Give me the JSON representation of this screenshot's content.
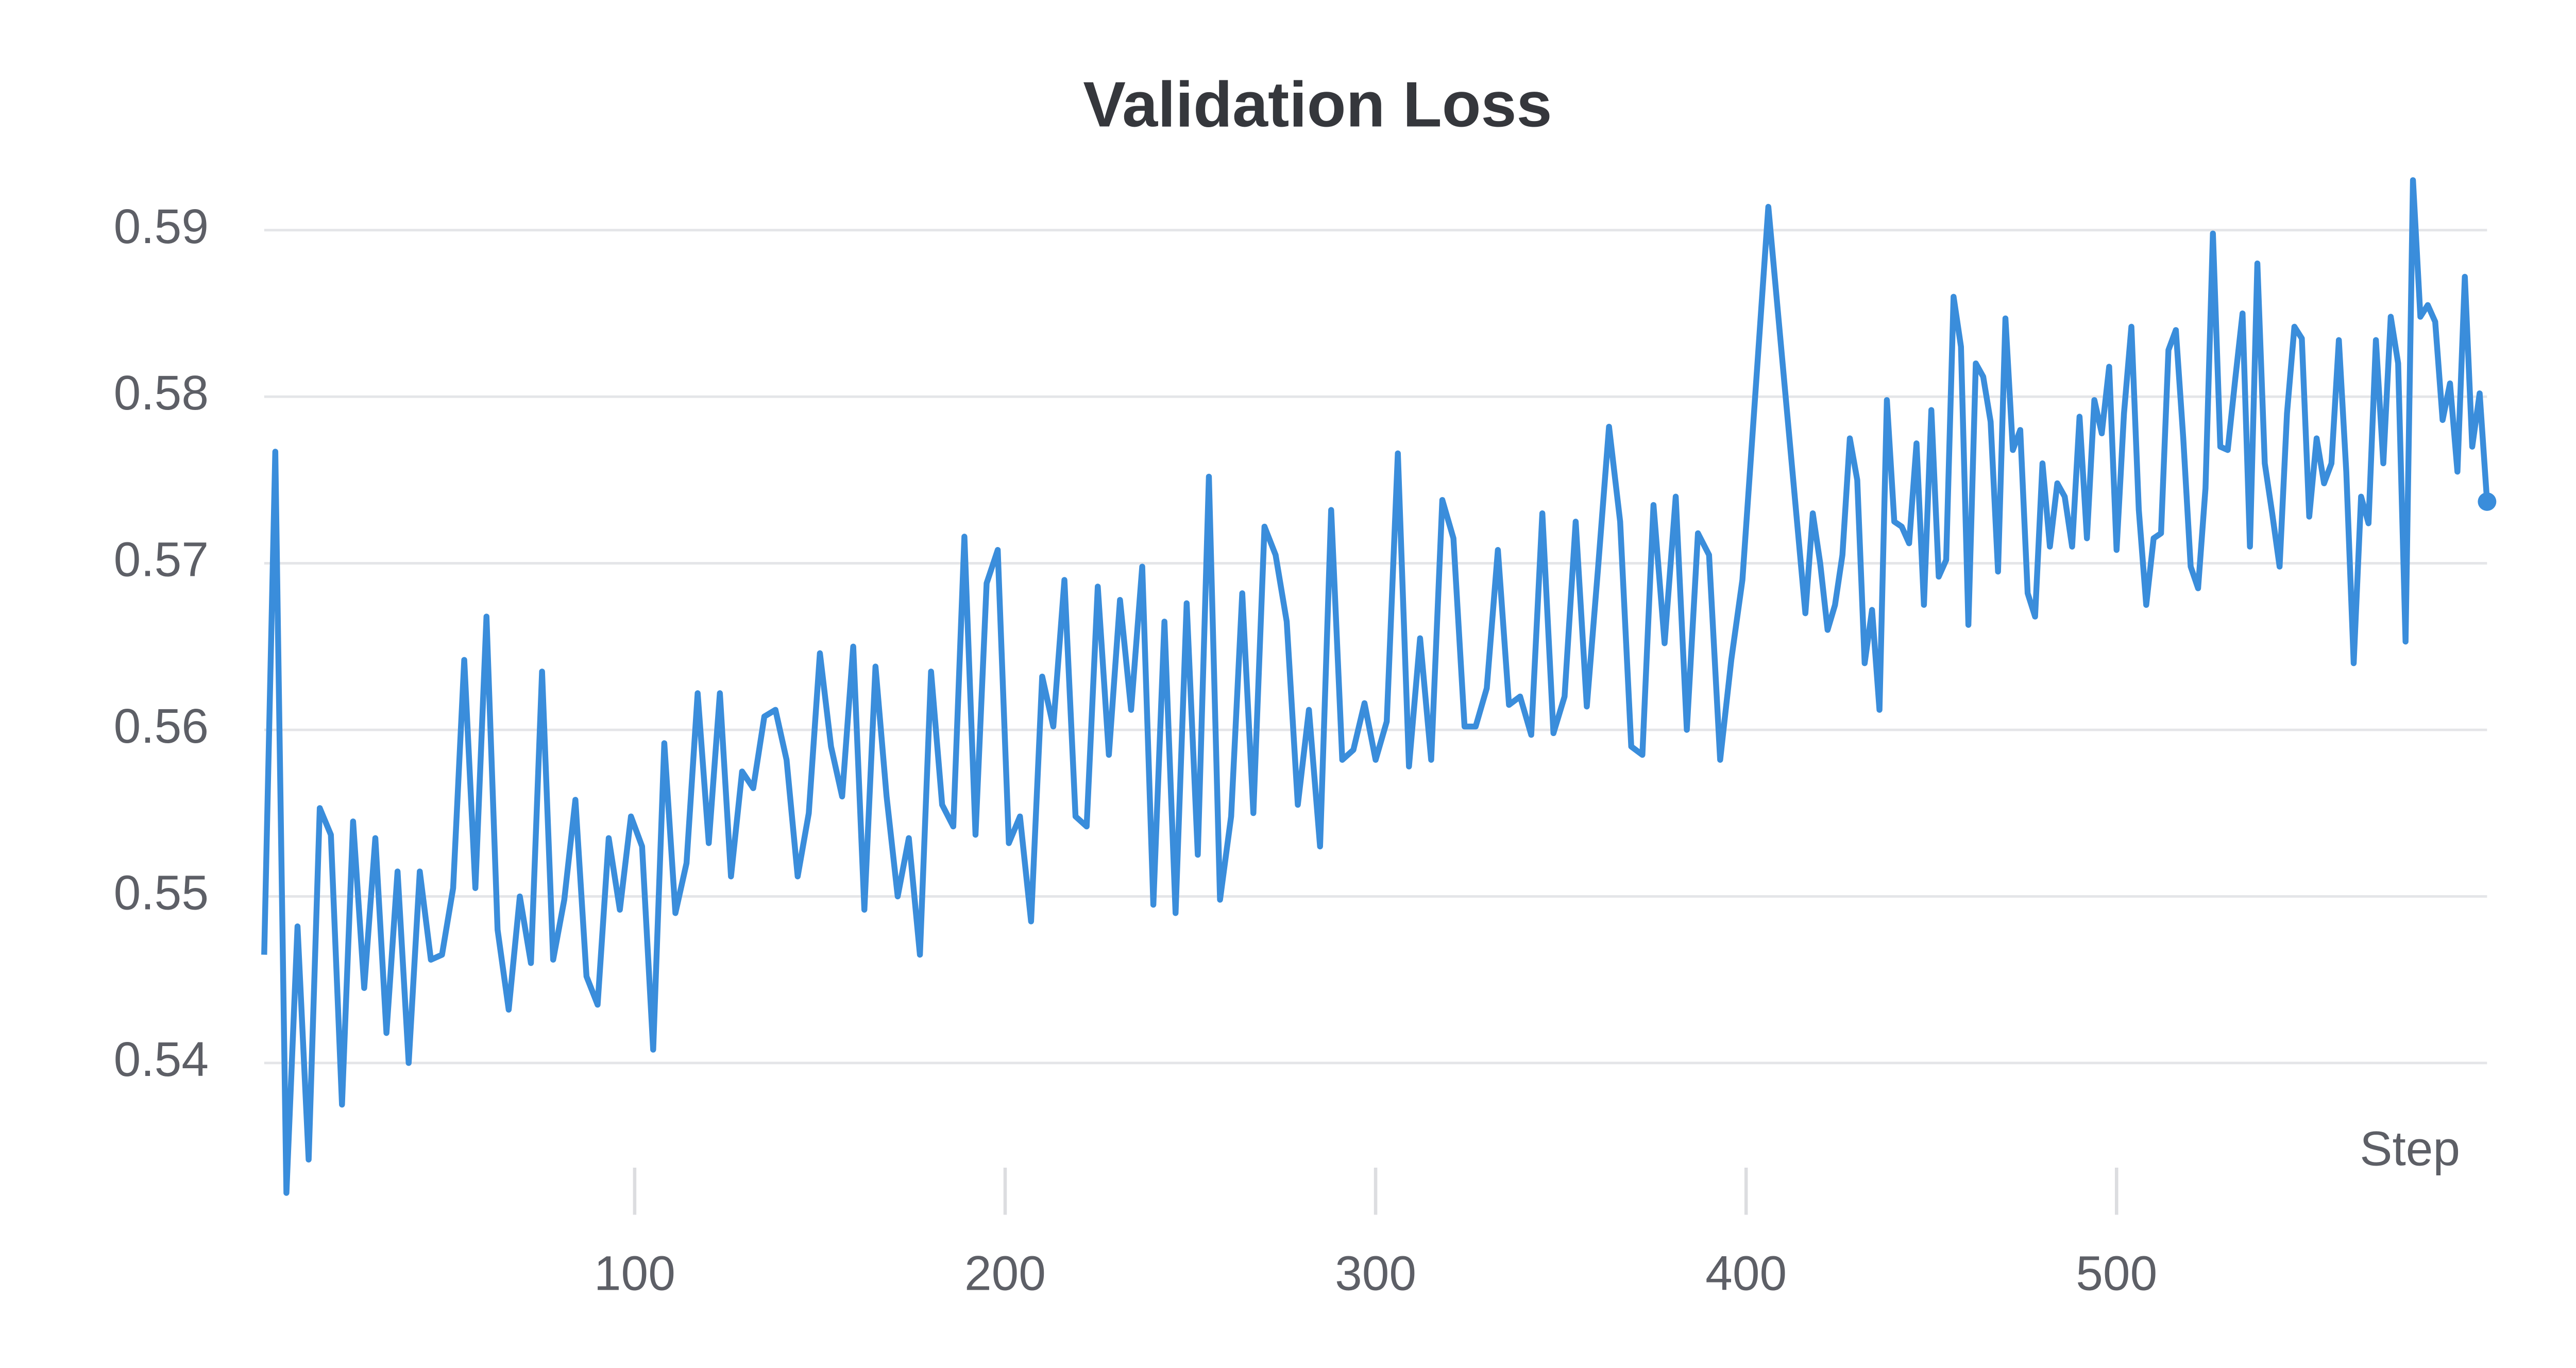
{
  "chart_data": {
    "type": "line",
    "title": "Validation Loss",
    "x_label": "Step",
    "xlim": [
      0,
      600
    ],
    "xticks": [
      100,
      200,
      300,
      400,
      500
    ],
    "ylim": [
      0.532,
      0.593
    ],
    "yticks": [
      0.54,
      0.55,
      0.56,
      0.57,
      0.58,
      0.59
    ],
    "grid": true,
    "x": [
      0,
      3,
      6,
      9,
      12,
      15,
      18,
      21,
      24,
      27,
      30,
      33,
      36,
      39,
      42,
      45,
      48,
      51,
      54,
      57,
      60,
      63,
      66,
      69,
      72,
      75,
      78,
      81,
      84,
      87,
      90,
      93,
      96,
      99,
      102,
      105,
      108,
      111,
      114,
      117,
      120,
      123,
      126,
      129,
      132,
      135,
      138,
      141,
      144,
      147,
      150,
      153,
      156,
      159,
      162,
      165,
      168,
      171,
      174,
      177,
      180,
      183,
      186,
      189,
      192,
      195,
      198,
      201,
      204,
      207,
      210,
      213,
      216,
      219,
      222,
      225,
      228,
      231,
      234,
      237,
      240,
      243,
      246,
      249,
      252,
      255,
      258,
      261,
      264,
      267,
      270,
      273,
      276,
      279,
      282,
      285,
      288,
      291,
      294,
      297,
      300,
      303,
      306,
      309,
      312,
      315,
      318,
      321,
      324,
      327,
      330,
      333,
      336,
      339,
      342,
      345,
      348,
      351,
      354,
      357,
      360,
      363,
      366,
      369,
      372,
      375,
      378,
      381,
      384,
      387,
      390,
      393,
      396,
      399,
      406,
      416,
      418,
      420,
      422,
      424,
      426,
      428,
      430,
      432,
      434,
      436,
      438,
      440,
      442,
      444,
      446,
      448,
      450,
      452,
      454,
      456,
      458,
      460,
      462,
      464,
      466,
      468,
      470,
      472,
      474,
      476,
      478,
      480,
      482,
      484,
      486,
      488,
      490,
      492,
      494,
      496,
      498,
      500,
      502,
      504,
      506,
      508,
      510,
      512,
      514,
      516,
      518,
      520,
      522,
      524,
      526,
      528,
      530,
      532,
      534,
      536,
      538,
      540,
      542,
      544,
      546,
      548,
      550,
      552,
      554,
      556,
      558,
      560,
      562,
      564,
      566,
      568,
      570,
      572,
      574,
      576,
      578,
      580,
      582,
      584,
      586,
      588,
      590,
      592,
      594,
      596,
      598,
      600
    ],
    "series": [
      {
        "name": "Validation Loss",
        "color": "#3a8ddb",
        "values": [
          0.5465,
          0.5767,
          0.5322,
          0.5482,
          0.5342,
          0.5553,
          0.5537,
          0.5375,
          0.5545,
          0.5445,
          0.5535,
          0.5418,
          0.5515,
          0.54,
          0.5515,
          0.5462,
          0.5465,
          0.5505,
          0.5642,
          0.5505,
          0.5668,
          0.548,
          0.5432,
          0.55,
          0.546,
          0.5635,
          0.5462,
          0.5498,
          0.5558,
          0.5452,
          0.5435,
          0.5535,
          0.5492,
          0.5548,
          0.553,
          0.5408,
          0.5592,
          0.549,
          0.552,
          0.5622,
          0.5532,
          0.5622,
          0.5512,
          0.5575,
          0.5565,
          0.5608,
          0.5612,
          0.5582,
          0.5512,
          0.555,
          0.5646,
          0.559,
          0.556,
          0.565,
          0.5492,
          0.5638,
          0.556,
          0.55,
          0.5535,
          0.5465,
          0.5635,
          0.5555,
          0.5542,
          0.5716,
          0.5537,
          0.5688,
          0.5708,
          0.5532,
          0.5548,
          0.5485,
          0.5632,
          0.5602,
          0.569,
          0.5548,
          0.5542,
          0.5686,
          0.5585,
          0.5678,
          0.5612,
          0.5698,
          0.5495,
          0.5665,
          0.549,
          0.5676,
          0.5525,
          0.5752,
          0.5498,
          0.5548,
          0.5682,
          0.555,
          0.5722,
          0.5705,
          0.5665,
          0.5555,
          0.5612,
          0.553,
          0.5732,
          0.5582,
          0.5588,
          0.5616,
          0.5582,
          0.5605,
          0.5766,
          0.5578,
          0.5655,
          0.5582,
          0.5738,
          0.5715,
          0.5602,
          0.5602,
          0.5625,
          0.5708,
          0.5615,
          0.562,
          0.5597,
          0.573,
          0.5598,
          0.562,
          0.5725,
          0.5614,
          0.5696,
          0.5782,
          0.5725,
          0.559,
          0.5585,
          0.5735,
          0.5652,
          0.574,
          0.56,
          0.5718,
          0.5705,
          0.5582,
          0.5642,
          0.569,
          0.5914,
          0.567,
          0.573,
          0.57,
          0.566,
          0.5675,
          0.5705,
          0.5775,
          0.575,
          0.564,
          0.5672,
          0.5612,
          0.5798,
          0.5725,
          0.5722,
          0.5712,
          0.5772,
          0.5675,
          0.5792,
          0.5692,
          0.5702,
          0.586,
          0.583,
          0.5663,
          0.582,
          0.5812,
          0.5785,
          0.5695,
          0.5847,
          0.5768,
          0.578,
          0.5682,
          0.5668,
          0.576,
          0.571,
          0.5748,
          0.574,
          0.571,
          0.5788,
          0.5715,
          0.5798,
          0.5778,
          0.5818,
          0.5708,
          0.579,
          0.5842,
          0.5732,
          0.5675,
          0.5715,
          0.5718,
          0.5828,
          0.584,
          0.5775,
          0.5698,
          0.5685,
          0.5745,
          0.5898,
          0.577,
          0.5768,
          0.581,
          0.585,
          0.571,
          0.588,
          0.576,
          0.573,
          0.5698,
          0.579,
          0.5842,
          0.5835,
          0.5728,
          0.5775,
          0.5748,
          0.576,
          0.5834,
          0.5755,
          0.564,
          0.574,
          0.5724,
          0.5834,
          0.576,
          0.5848,
          0.582,
          0.5653,
          0.593,
          0.5848,
          0.5855,
          0.5845,
          0.5786,
          0.5808,
          0.5755,
          0.5872,
          0.577,
          0.5802,
          0.5737
        ]
      }
    ]
  }
}
